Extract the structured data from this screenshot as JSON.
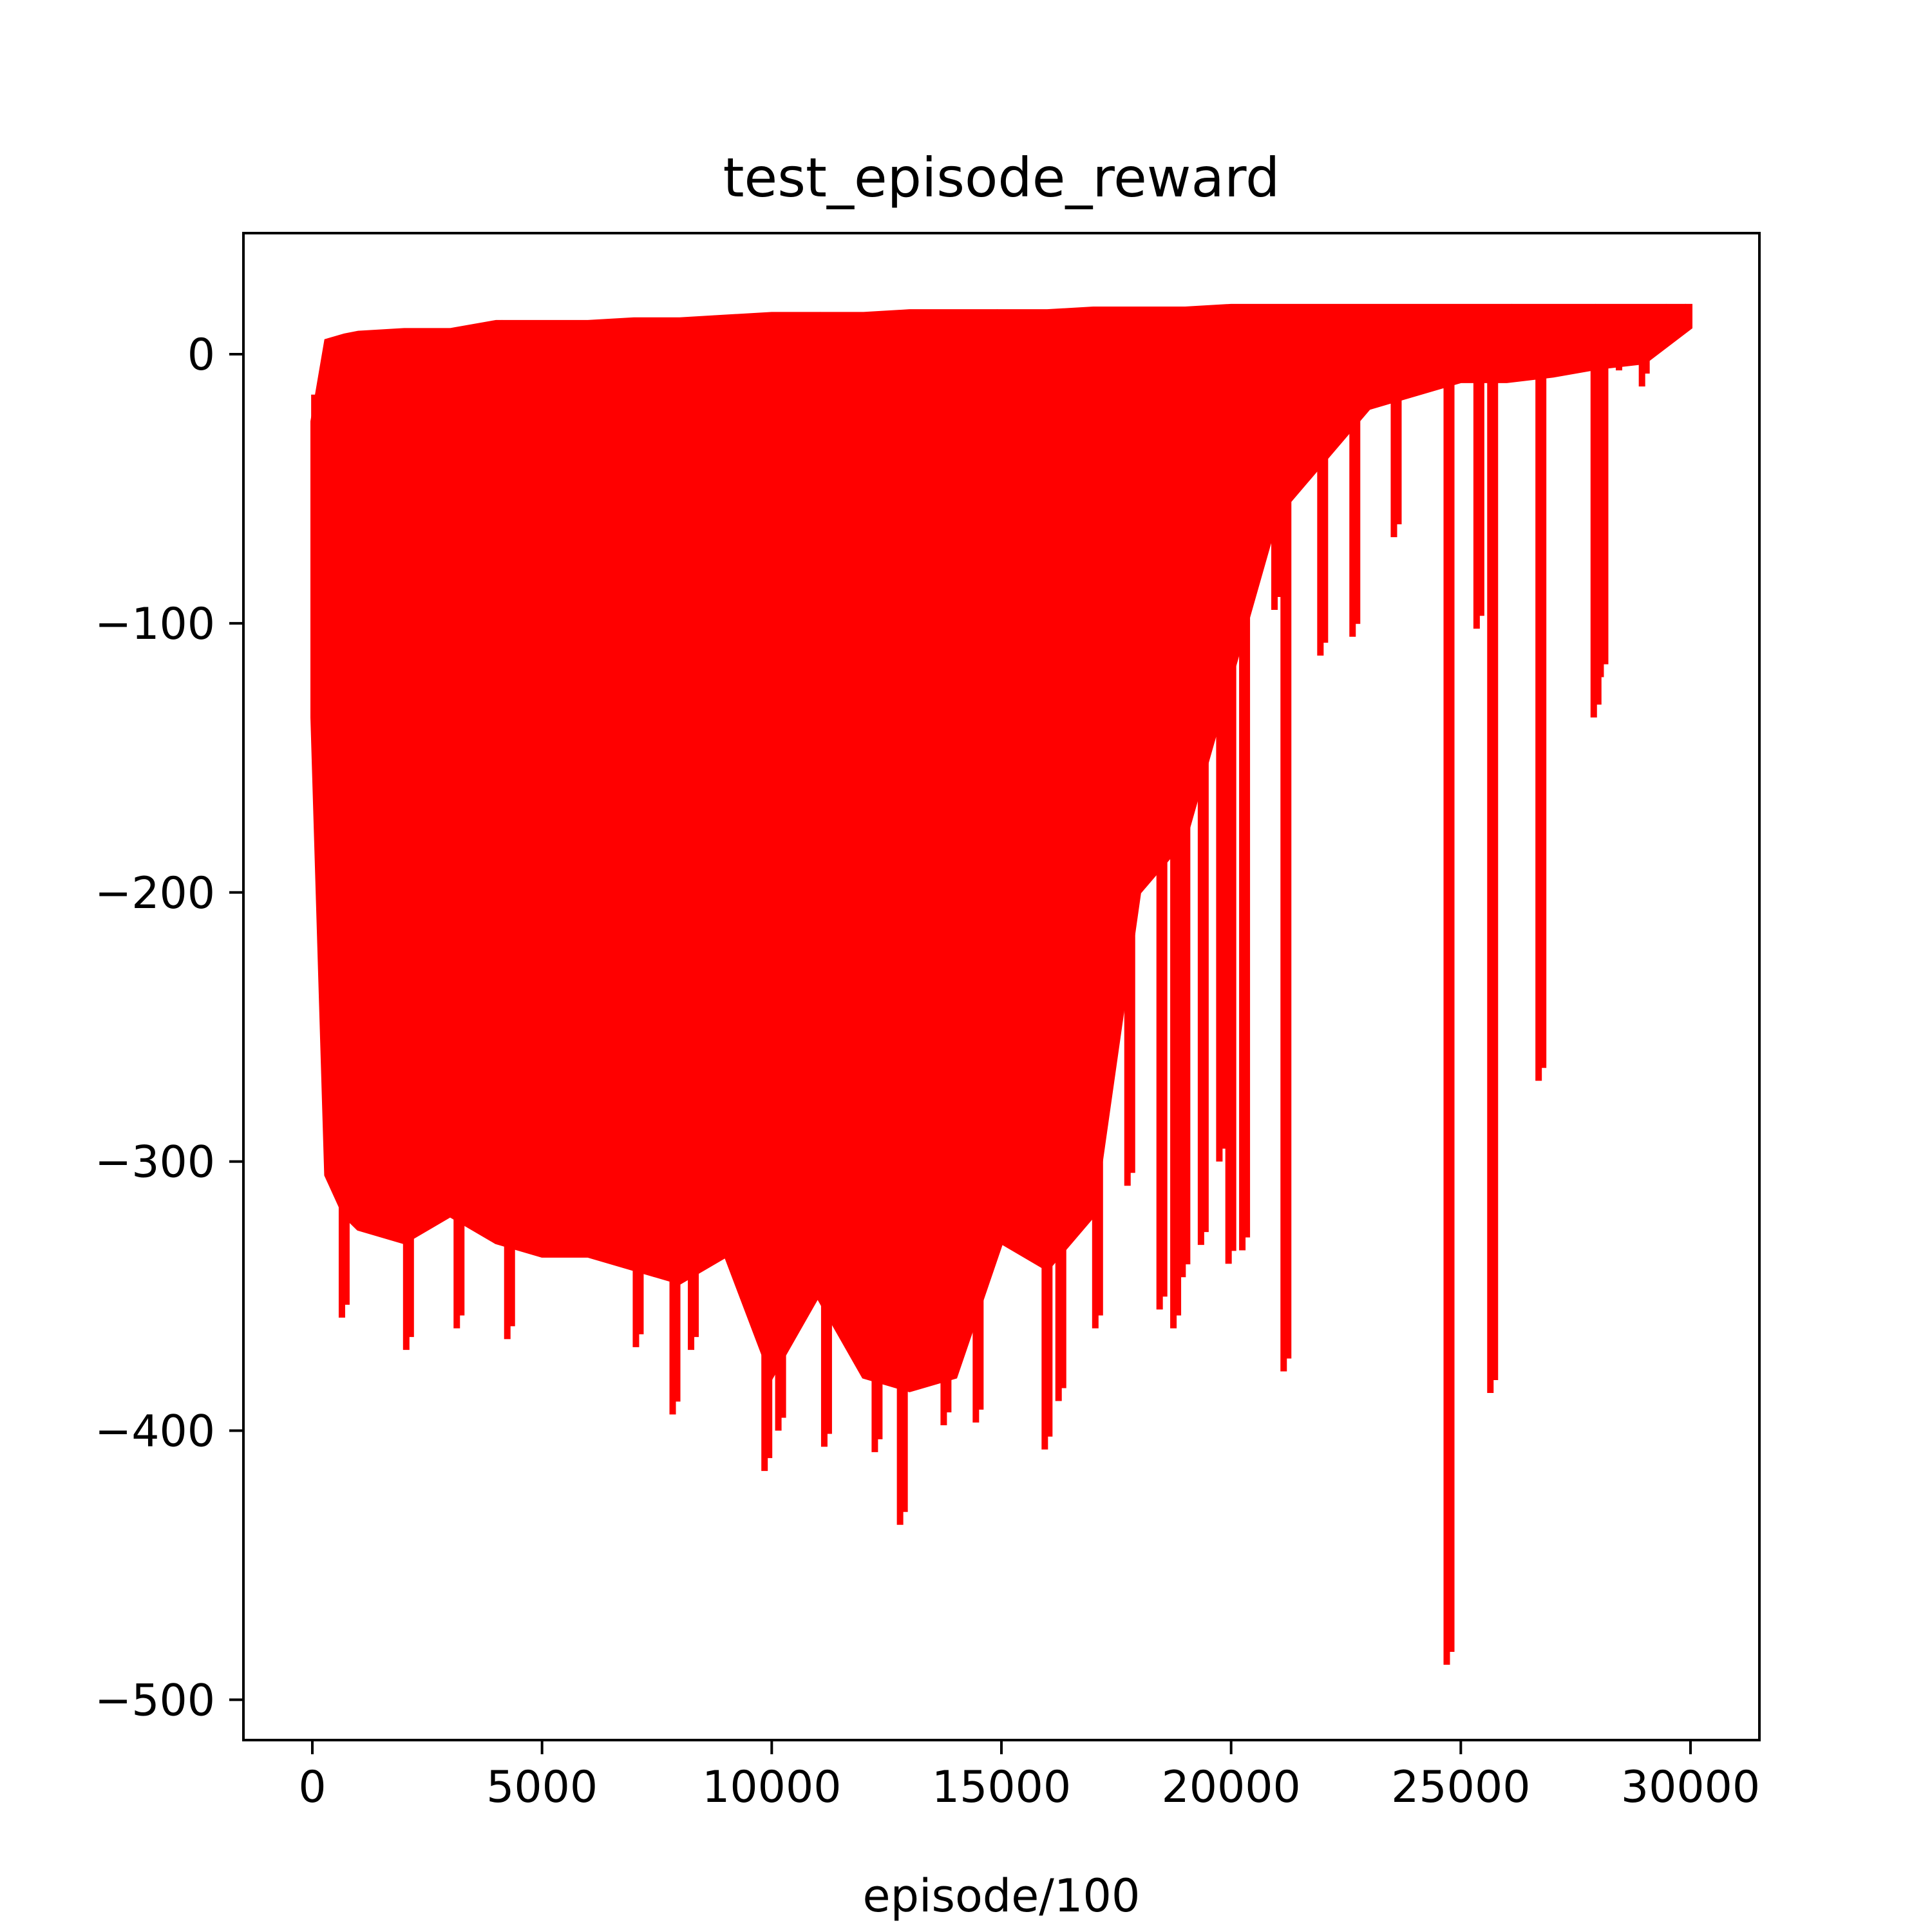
{
  "chart_data": {
    "type": "line",
    "title": "test_episode_reward",
    "xlabel": "episode/100",
    "ylabel": "",
    "xlim": [
      -1500,
      31500
    ],
    "ylim": [
      -515,
      45
    ],
    "x_ticks": [
      0,
      5000,
      10000,
      15000,
      20000,
      25000,
      30000
    ],
    "x_tick_labels": [
      "0",
      "5000",
      "10000",
      "15000",
      "20000",
      "25000",
      "30000"
    ],
    "y_ticks": [
      0,
      -100,
      -200,
      -300,
      -400,
      -500
    ],
    "y_tick_labels": [
      "0",
      "−100",
      "−200",
      "−300",
      "−400",
      "−500"
    ],
    "grid": false,
    "legend": "none",
    "series": [
      {
        "color": "#ff0000",
        "envelope": {
          "x": [
            0,
            300,
            700,
            1000,
            2000,
            3000,
            4000,
            5000,
            6000,
            7000,
            8000,
            9000,
            10000,
            11000,
            12000,
            13000,
            14000,
            15000,
            16000,
            17000,
            18000,
            19000,
            20000,
            21000,
            22000,
            23000,
            24000,
            25000,
            26000,
            27000,
            28000,
            29000,
            30000
          ],
          "upper": [
            -25,
            5,
            7,
            8,
            9,
            9,
            12,
            12,
            12,
            13,
            13,
            14,
            15,
            15,
            15,
            16,
            16,
            16,
            16,
            17,
            17,
            17,
            18,
            18,
            18,
            18,
            18,
            18,
            18,
            18,
            18,
            18,
            18
          ],
          "lower": [
            -135,
            -305,
            -320,
            -325,
            -330,
            -320,
            -330,
            -335,
            -335,
            -340,
            -345,
            -335,
            -380,
            -350,
            -380,
            -385,
            -380,
            -330,
            -340,
            -320,
            -200,
            -180,
            -120,
            -60,
            -40,
            -20,
            -15,
            -10,
            -10,
            -8,
            -5,
            -3,
            10
          ]
        },
        "spikes": [
          {
            "x": 100,
            "y": -137
          },
          {
            "x": 700,
            "y": -358
          },
          {
            "x": 2100,
            "y": -370
          },
          {
            "x": 3200,
            "y": -362
          },
          {
            "x": 4300,
            "y": -366
          },
          {
            "x": 7100,
            "y": -369
          },
          {
            "x": 7900,
            "y": -394
          },
          {
            "x": 8300,
            "y": -370
          },
          {
            "x": 9900,
            "y": -415
          },
          {
            "x": 10200,
            "y": -400
          },
          {
            "x": 11200,
            "y": -406
          },
          {
            "x": 12300,
            "y": -408
          },
          {
            "x": 12850,
            "y": -435
          },
          {
            "x": 13800,
            "y": -398
          },
          {
            "x": 14500,
            "y": -397
          },
          {
            "x": 16000,
            "y": -407
          },
          {
            "x": 16300,
            "y": -389
          },
          {
            "x": 17100,
            "y": -362
          },
          {
            "x": 17600,
            "y": -240
          },
          {
            "x": 17800,
            "y": -309
          },
          {
            "x": 18500,
            "y": -355
          },
          {
            "x": 18800,
            "y": -362
          },
          {
            "x": 19000,
            "y": -343
          },
          {
            "x": 19400,
            "y": -331
          },
          {
            "x": 19800,
            "y": -300
          },
          {
            "x": 20000,
            "y": -338
          },
          {
            "x": 20300,
            "y": -333
          },
          {
            "x": 21200,
            "y": -378
          },
          {
            "x": 21000,
            "y": -95
          },
          {
            "x": 22000,
            "y": -112
          },
          {
            "x": 22700,
            "y": -105
          },
          {
            "x": 23600,
            "y": -68
          },
          {
            "x": 24750,
            "y": -487
          },
          {
            "x": 25700,
            "y": -386
          },
          {
            "x": 25400,
            "y": -102
          },
          {
            "x": 26750,
            "y": -270
          },
          {
            "x": 27950,
            "y": -135
          },
          {
            "x": 28100,
            "y": -120
          },
          {
            "x": 28500,
            "y": -6
          },
          {
            "x": 29000,
            "y": -12
          }
        ]
      }
    ]
  }
}
